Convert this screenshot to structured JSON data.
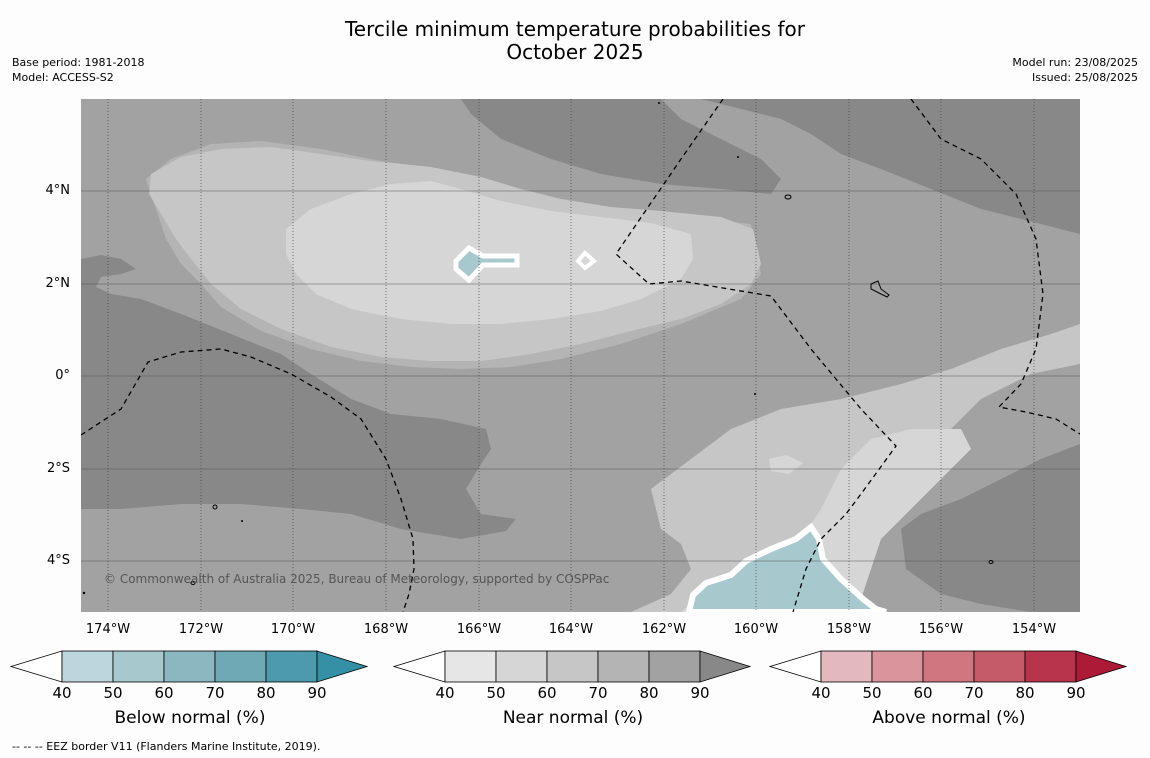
{
  "title": {
    "line1": "Tercile minimum temperature probabilities for",
    "line2": "October 2025"
  },
  "meta_left": {
    "base_period": "Base period: 1981-2018",
    "model": "Model: ACCESS-S2"
  },
  "meta_right": {
    "model_run": "Model run: 23/08/2025",
    "issued": "Issued: 25/08/2025"
  },
  "lat_labels": [
    "4°N",
    "2°N",
    "0°",
    "2°S",
    "4°S"
  ],
  "lon_labels": [
    "174°W",
    "172°W",
    "170°W",
    "168°W",
    "166°W",
    "164°W",
    "162°W",
    "160°W",
    "158°W",
    "156°W",
    "154°W"
  ],
  "copyright": "© Commonwealth of Australia 2025, Bureau of Meteorology, supported by COSPPac",
  "colorbars": [
    {
      "label": "Below normal (%)",
      "ticks": [
        "40",
        "50",
        "60",
        "70",
        "80",
        "90"
      ],
      "colors": [
        "#ffffff",
        "#bdd6dd",
        "#a7c8cd",
        "#8bb8c0",
        "#6fa9b5",
        "#4c9aab",
        "#3690a5"
      ]
    },
    {
      "label": "Near normal (%)",
      "ticks": [
        "40",
        "50",
        "60",
        "70",
        "80",
        "90"
      ],
      "colors": [
        "#ffffff",
        "#e6e6e6",
        "#d6d6d6",
        "#c6c6c6",
        "#b4b4b4",
        "#a2a2a2",
        "#888888"
      ]
    },
    {
      "label": "Above normal (%)",
      "ticks": [
        "40",
        "50",
        "60",
        "70",
        "80",
        "90"
      ],
      "colors": [
        "#ffffff",
        "#e3b9bf",
        "#d9949c",
        "#cf7680",
        "#c55a68",
        "#b8344c",
        "#ac1a38"
      ]
    }
  ],
  "footnote": "--  --  -- EEZ border V11 (Flanders Marine Institute, 2019).",
  "map_colors": {
    "near_90": "#888888",
    "near_80": "#a2a2a2",
    "near_70": "#b4b4b4",
    "near_60": "#c6c6c6",
    "near_50": "#d6d6d6",
    "below_50": "#a7c8cd",
    "boundary": "#ffffff"
  }
}
